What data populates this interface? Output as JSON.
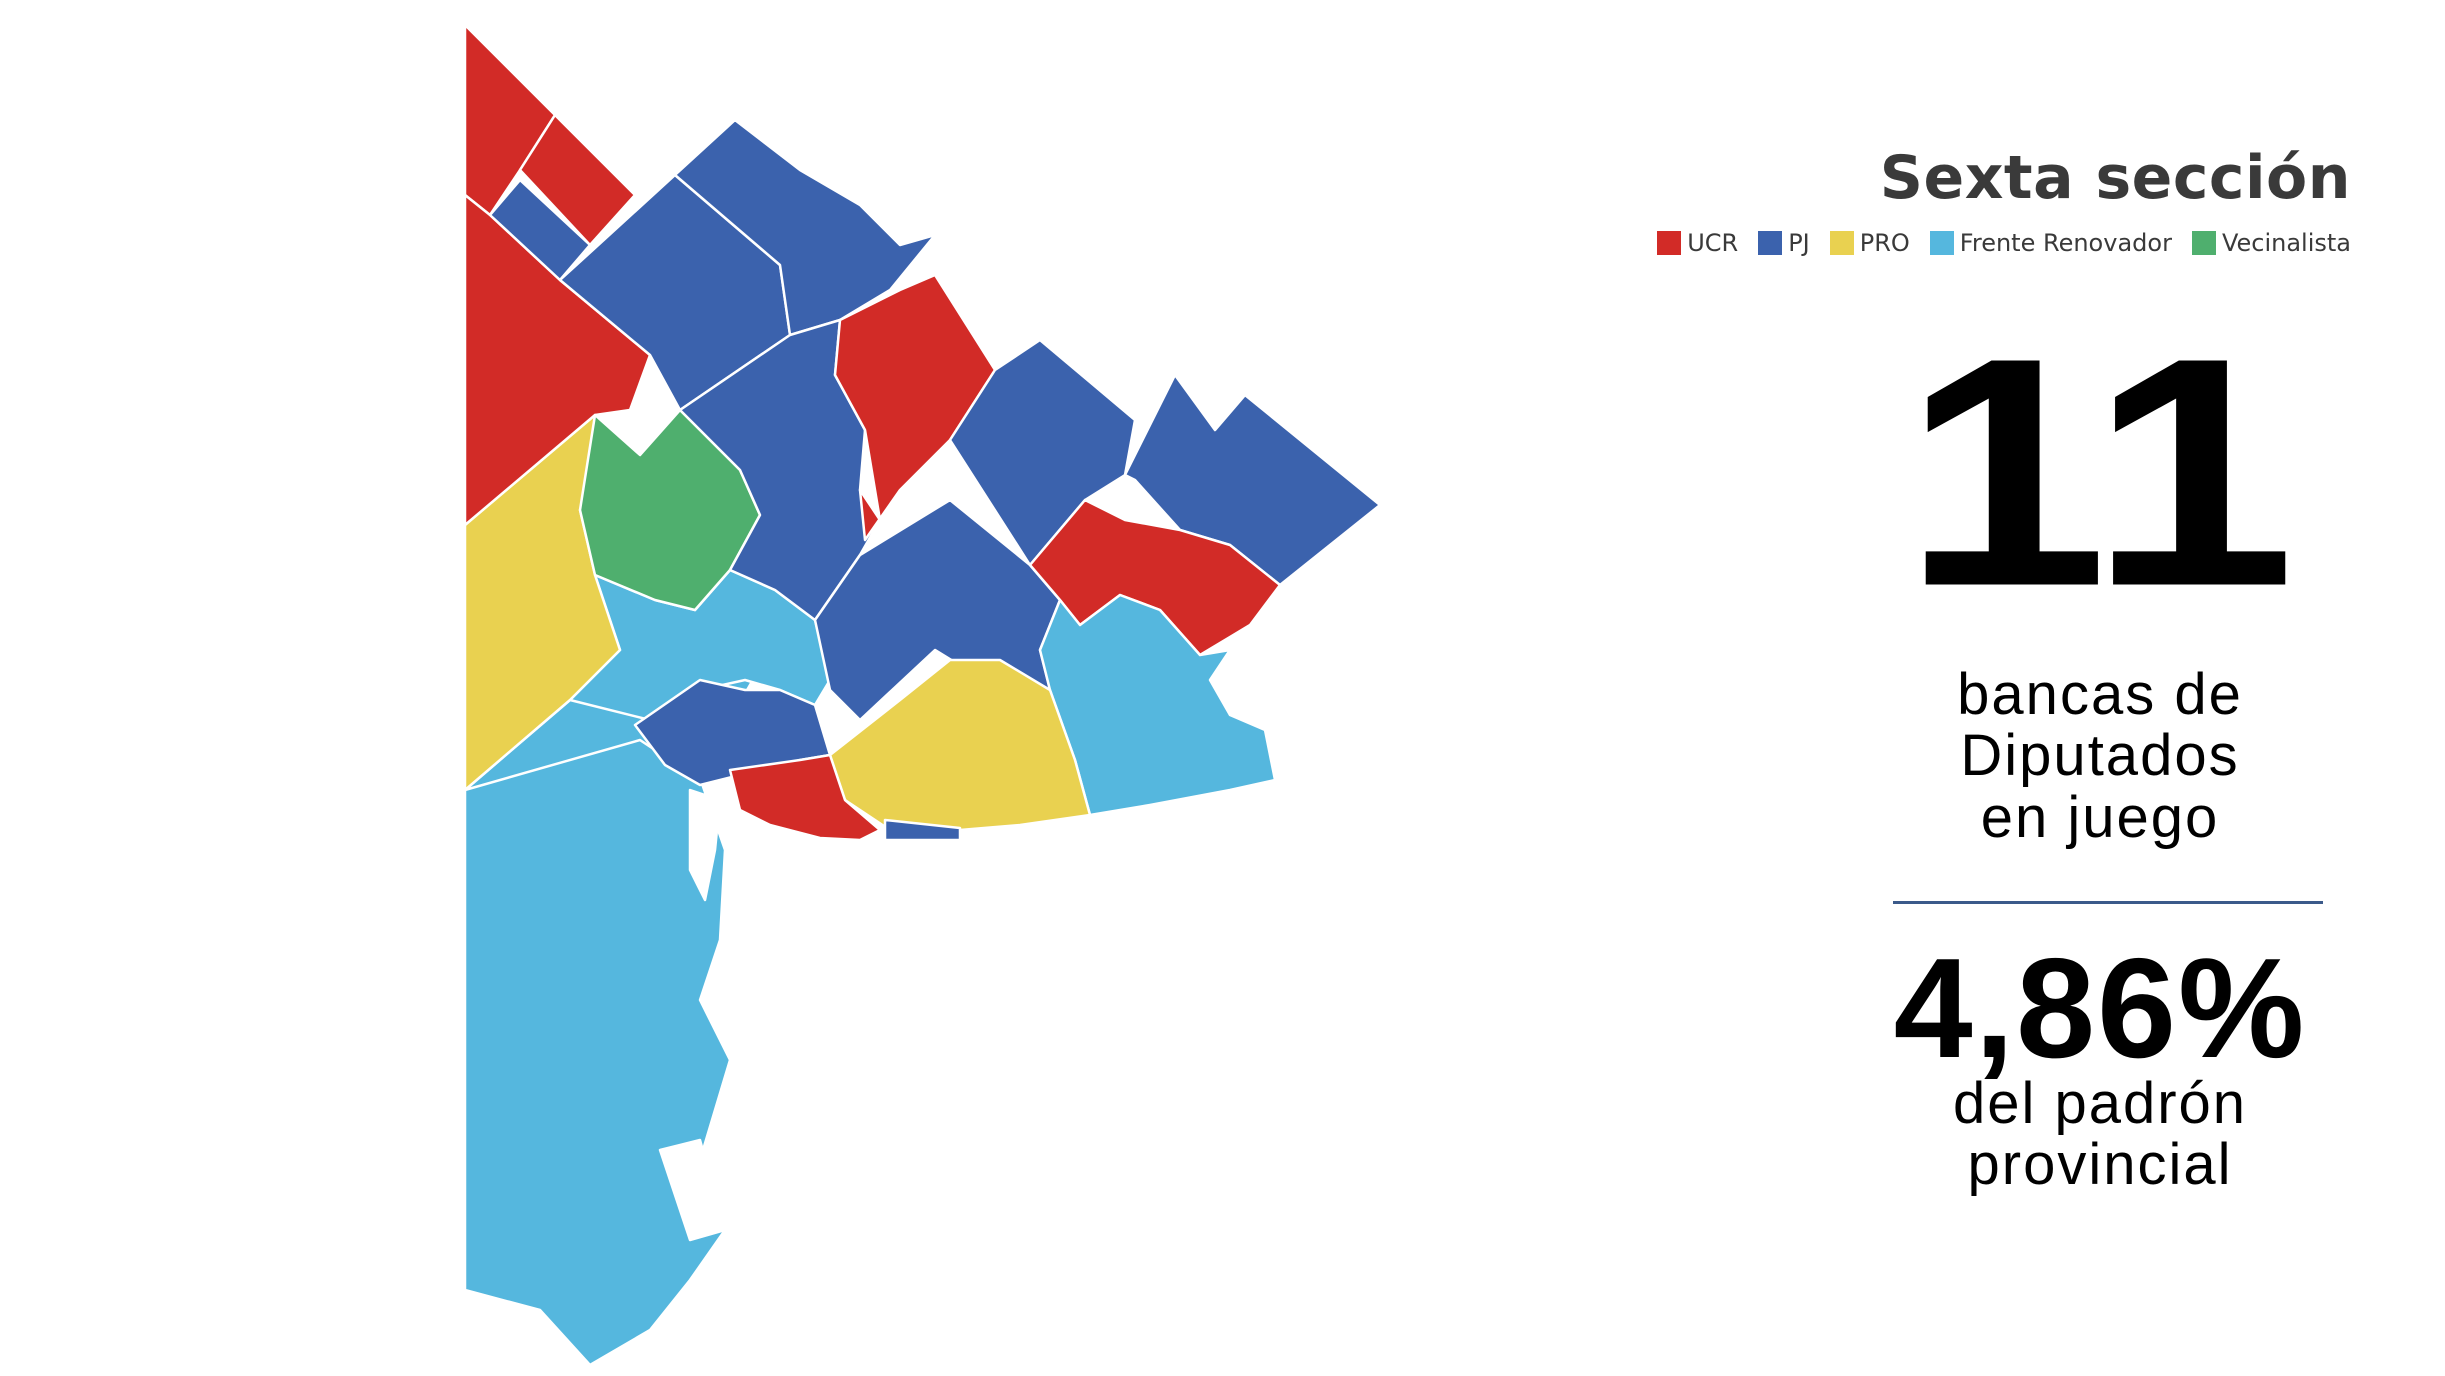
{
  "title": "Sexta sección",
  "legend": [
    {
      "label": "UCR",
      "color": "#d22b27"
    },
    {
      "label": "PJ",
      "color": "#3b62ad"
    },
    {
      "label": "PRO",
      "color": "#e9d150"
    },
    {
      "label": "Frente Renovador",
      "color": "#55b7de"
    },
    {
      "label": "Vecinalista",
      "color": "#4faf6e"
    }
  ],
  "seats": {
    "number": "11",
    "caption_lines": [
      "bancas de",
      "Diputados",
      "en juego"
    ]
  },
  "share": {
    "percent": "4,86%",
    "caption_lines": [
      "del padrón",
      "provincial"
    ]
  },
  "map": {
    "fill_by_party": {
      "UCR": "#d22b27",
      "PJ": "#3b62ad",
      "PRO": "#e9d150",
      "Frente Renovador": "#55b7de",
      "Vecinalista": "#4faf6e"
    }
  }
}
